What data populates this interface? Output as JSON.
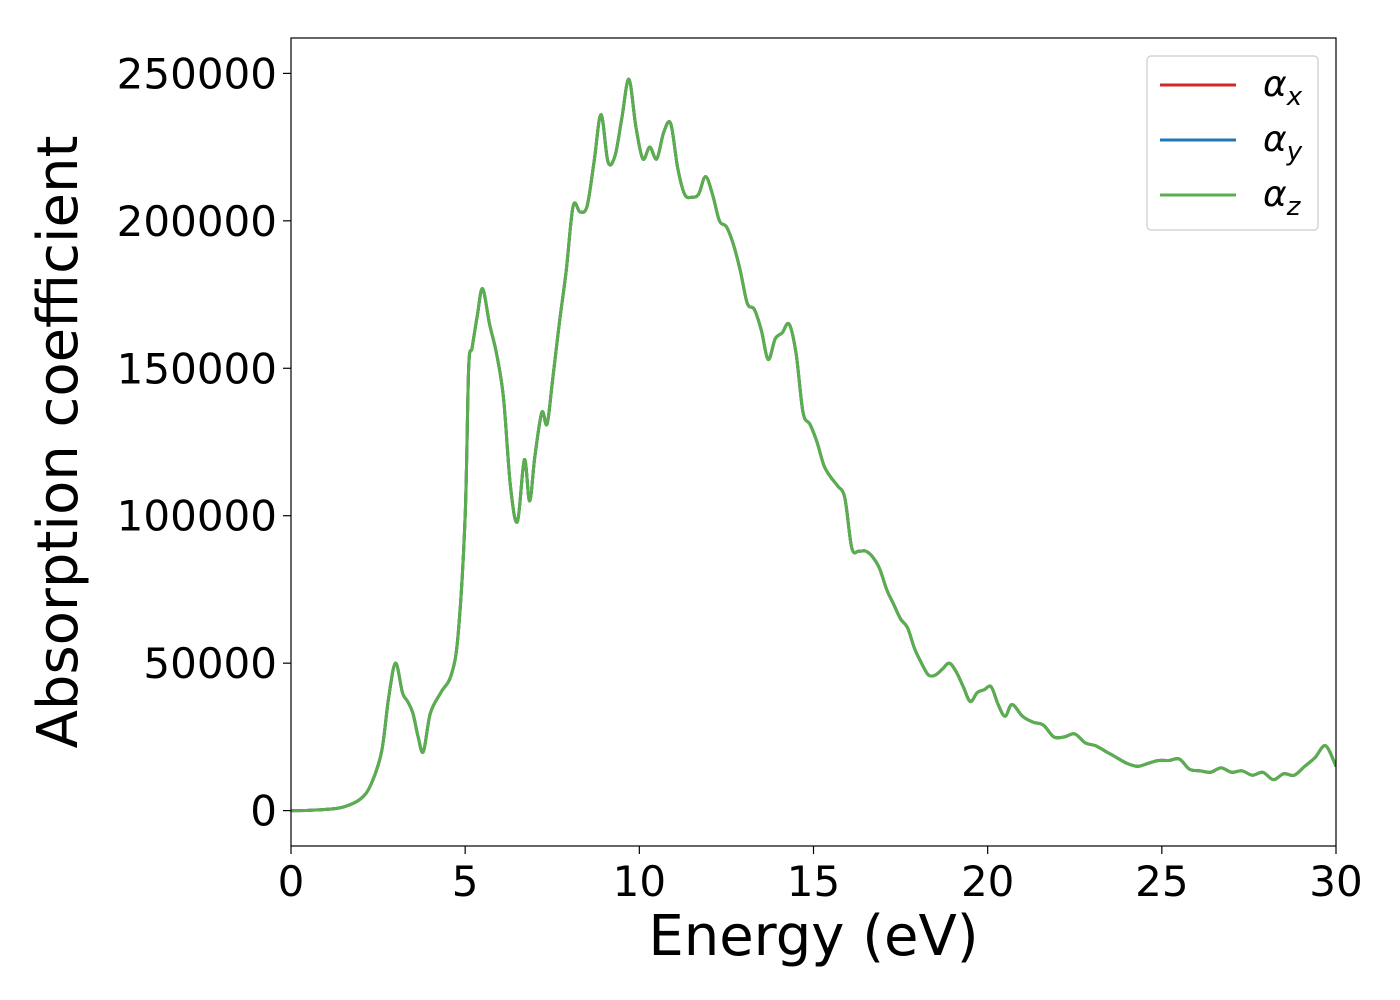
{
  "chart_data": {
    "type": "line",
    "title": "",
    "xlabel": "Energy (eV)",
    "ylabel": "Absorption coefficient",
    "xlim": [
      0,
      30
    ],
    "ylim": [
      -12000,
      262000
    ],
    "xticks": [
      "0",
      "5",
      "10",
      "15",
      "20",
      "25",
      "30"
    ],
    "yticks": [
      "0",
      "50000",
      "100000",
      "150000",
      "200000",
      "250000"
    ],
    "grid": false,
    "legend_position": "top-right",
    "series": [
      {
        "name": "α",
        "subscript": "x",
        "color": "#d62728",
        "x": [
          0,
          0.5,
          1,
          1.5,
          2,
          2.3,
          2.6,
          2.8,
          3.0,
          3.2,
          3.35,
          3.5,
          3.65,
          3.8,
          4.0,
          4.3,
          4.6,
          4.8,
          5.0,
          5.1,
          5.2,
          5.35,
          5.5,
          5.7,
          5.9,
          6.1,
          6.3,
          6.5,
          6.7,
          6.85,
          7.0,
          7.2,
          7.35,
          7.5,
          7.7,
          7.9,
          8.1,
          8.3,
          8.5,
          8.7,
          8.9,
          9.1,
          9.3,
          9.5,
          9.7,
          9.9,
          10.1,
          10.3,
          10.5,
          10.7,
          10.9,
          11.1,
          11.3,
          11.5,
          11.7,
          11.9,
          12.1,
          12.3,
          12.5,
          12.7,
          12.9,
          13.1,
          13.3,
          13.5,
          13.7,
          13.9,
          14.1,
          14.3,
          14.5,
          14.7,
          14.9,
          15.1,
          15.3,
          15.5,
          15.7,
          15.9,
          16.1,
          16.3,
          16.5,
          16.7,
          16.9,
          17.1,
          17.3,
          17.5,
          17.7,
          17.9,
          18.1,
          18.3,
          18.5,
          18.7,
          18.9,
          19.1,
          19.3,
          19.5,
          19.7,
          19.9,
          20.1,
          20.3,
          20.5,
          20.7,
          21.0,
          21.3,
          21.6,
          21.9,
          22.2,
          22.5,
          22.8,
          23.1,
          23.4,
          23.7,
          24.0,
          24.3,
          24.6,
          24.9,
          25.2,
          25.5,
          25.8,
          26.1,
          26.4,
          26.7,
          27.0,
          27.3,
          27.6,
          27.9,
          28.2,
          28.5,
          28.8,
          29.1,
          29.4,
          29.7,
          30.0
        ],
        "y": [
          0,
          100,
          400,
          1200,
          4000,
          9000,
          20000,
          38000,
          50000,
          40000,
          37000,
          33000,
          25000,
          20000,
          33000,
          40000,
          46000,
          60000,
          100000,
          150000,
          157000,
          168000,
          177000,
          165000,
          155000,
          140000,
          110000,
          98000,
          119000,
          105000,
          120000,
          135000,
          131000,
          145000,
          165000,
          183000,
          205000,
          203000,
          205000,
          220000,
          236000,
          220000,
          222000,
          235000,
          248000,
          232000,
          221000,
          225000,
          221000,
          230000,
          233000,
          218000,
          209000,
          208000,
          209000,
          215000,
          209000,
          200000,
          198000,
          192000,
          183000,
          172000,
          170000,
          163000,
          153000,
          160000,
          162000,
          165000,
          155000,
          135000,
          131000,
          125000,
          117000,
          113000,
          110000,
          106000,
          89000,
          88000,
          88000,
          86000,
          82000,
          75000,
          70000,
          65000,
          62000,
          55000,
          50000,
          46000,
          46000,
          48000,
          50000,
          47000,
          42000,
          37000,
          40000,
          41000,
          42000,
          36000,
          32000,
          36000,
          32000,
          30000,
          29000,
          25000,
          25000,
          26000,
          23000,
          22000,
          20000,
          18000,
          16000,
          15000,
          16000,
          17000,
          17000,
          17500,
          14000,
          13500,
          13000,
          14500,
          13000,
          13500,
          12000,
          13000,
          10500,
          12500,
          12000,
          15000,
          18000,
          22000,
          15000
        ]
      },
      {
        "name": "α",
        "subscript": "y",
        "color": "#1f77b4",
        "x": [
          0,
          0.5,
          1,
          1.5,
          2,
          2.3,
          2.6,
          2.8,
          3.0,
          3.2,
          3.35,
          3.5,
          3.65,
          3.8,
          4.0,
          4.3,
          4.6,
          4.8,
          5.0,
          5.1,
          5.2,
          5.35,
          5.5,
          5.7,
          5.9,
          6.1,
          6.3,
          6.5,
          6.7,
          6.85,
          7.0,
          7.2,
          7.35,
          7.5,
          7.7,
          7.9,
          8.1,
          8.3,
          8.5,
          8.7,
          8.9,
          9.1,
          9.3,
          9.5,
          9.7,
          9.9,
          10.1,
          10.3,
          10.5,
          10.7,
          10.9,
          11.1,
          11.3,
          11.5,
          11.7,
          11.9,
          12.1,
          12.3,
          12.5,
          12.7,
          12.9,
          13.1,
          13.3,
          13.5,
          13.7,
          13.9,
          14.1,
          14.3,
          14.5,
          14.7,
          14.9,
          15.1,
          15.3,
          15.5,
          15.7,
          15.9,
          16.1,
          16.3,
          16.5,
          16.7,
          16.9,
          17.1,
          17.3,
          17.5,
          17.7,
          17.9,
          18.1,
          18.3,
          18.5,
          18.7,
          18.9,
          19.1,
          19.3,
          19.5,
          19.7,
          19.9,
          20.1,
          20.3,
          20.5,
          20.7,
          21.0,
          21.3,
          21.6,
          21.9,
          22.2,
          22.5,
          22.8,
          23.1,
          23.4,
          23.7,
          24.0,
          24.3,
          24.6,
          24.9,
          25.2,
          25.5,
          25.8,
          26.1,
          26.4,
          26.7,
          27.0,
          27.3,
          27.6,
          27.9,
          28.2,
          28.5,
          28.8,
          29.1,
          29.4,
          29.7,
          30.0
        ],
        "y": [
          0,
          100,
          400,
          1200,
          4000,
          9000,
          20000,
          38000,
          50000,
          40000,
          37000,
          33000,
          25000,
          20000,
          33000,
          40000,
          46000,
          60000,
          100000,
          150000,
          157000,
          168000,
          177000,
          165000,
          155000,
          140000,
          110000,
          98000,
          119000,
          105000,
          120000,
          135000,
          131000,
          145000,
          165000,
          183000,
          205000,
          203000,
          205000,
          220000,
          236000,
          220000,
          222000,
          235000,
          248000,
          232000,
          221000,
          225000,
          221000,
          230000,
          233000,
          218000,
          209000,
          208000,
          209000,
          215000,
          209000,
          200000,
          198000,
          192000,
          183000,
          172000,
          170000,
          163000,
          153000,
          160000,
          162000,
          165000,
          155000,
          135000,
          131000,
          125000,
          117000,
          113000,
          110000,
          106000,
          89000,
          88000,
          88000,
          86000,
          82000,
          75000,
          70000,
          65000,
          62000,
          55000,
          50000,
          46000,
          46000,
          48000,
          50000,
          47000,
          42000,
          37000,
          40000,
          41000,
          42000,
          36000,
          32000,
          36000,
          32000,
          30000,
          29000,
          25000,
          25000,
          26000,
          23000,
          22000,
          20000,
          18000,
          16000,
          15000,
          16000,
          17000,
          17000,
          17500,
          14000,
          13500,
          13000,
          14500,
          13000,
          13500,
          12000,
          13000,
          10500,
          12500,
          12000,
          15000,
          18000,
          22000,
          15000
        ]
      },
      {
        "name": "α",
        "subscript": "z",
        "color": "#5aaf4d",
        "x": [
          0,
          0.5,
          1,
          1.5,
          2,
          2.3,
          2.6,
          2.8,
          3.0,
          3.2,
          3.35,
          3.5,
          3.65,
          3.8,
          4.0,
          4.3,
          4.6,
          4.8,
          5.0,
          5.1,
          5.2,
          5.35,
          5.5,
          5.7,
          5.9,
          6.1,
          6.3,
          6.5,
          6.7,
          6.85,
          7.0,
          7.2,
          7.35,
          7.5,
          7.7,
          7.9,
          8.1,
          8.3,
          8.5,
          8.7,
          8.9,
          9.1,
          9.3,
          9.5,
          9.7,
          9.9,
          10.1,
          10.3,
          10.5,
          10.7,
          10.9,
          11.1,
          11.3,
          11.5,
          11.7,
          11.9,
          12.1,
          12.3,
          12.5,
          12.7,
          12.9,
          13.1,
          13.3,
          13.5,
          13.7,
          13.9,
          14.1,
          14.3,
          14.5,
          14.7,
          14.9,
          15.1,
          15.3,
          15.5,
          15.7,
          15.9,
          16.1,
          16.3,
          16.5,
          16.7,
          16.9,
          17.1,
          17.3,
          17.5,
          17.7,
          17.9,
          18.1,
          18.3,
          18.5,
          18.7,
          18.9,
          19.1,
          19.3,
          19.5,
          19.7,
          19.9,
          20.1,
          20.3,
          20.5,
          20.7,
          21.0,
          21.3,
          21.6,
          21.9,
          22.2,
          22.5,
          22.8,
          23.1,
          23.4,
          23.7,
          24.0,
          24.3,
          24.6,
          24.9,
          25.2,
          25.5,
          25.8,
          26.1,
          26.4,
          26.7,
          27.0,
          27.3,
          27.6,
          27.9,
          28.2,
          28.5,
          28.8,
          29.1,
          29.4,
          29.7,
          30.0
        ],
        "y": [
          0,
          100,
          400,
          1200,
          4000,
          9000,
          20000,
          38000,
          50000,
          40000,
          37000,
          33000,
          25000,
          20000,
          33000,
          40000,
          46000,
          60000,
          100000,
          150000,
          157000,
          168000,
          177000,
          165000,
          155000,
          140000,
          110000,
          98000,
          119000,
          105000,
          120000,
          135000,
          131000,
          145000,
          165000,
          183000,
          205000,
          203000,
          205000,
          220000,
          236000,
          220000,
          222000,
          235000,
          248000,
          232000,
          221000,
          225000,
          221000,
          230000,
          233000,
          218000,
          209000,
          208000,
          209000,
          215000,
          209000,
          200000,
          198000,
          192000,
          183000,
          172000,
          170000,
          163000,
          153000,
          160000,
          162000,
          165000,
          155000,
          135000,
          131000,
          125000,
          117000,
          113000,
          110000,
          106000,
          89000,
          88000,
          88000,
          86000,
          82000,
          75000,
          70000,
          65000,
          62000,
          55000,
          50000,
          46000,
          46000,
          48000,
          50000,
          47000,
          42000,
          37000,
          40000,
          41000,
          42000,
          36000,
          32000,
          36000,
          32000,
          30000,
          29000,
          25000,
          25000,
          26000,
          23000,
          22000,
          20000,
          18000,
          16000,
          15000,
          16000,
          17000,
          17000,
          17500,
          14000,
          13500,
          13000,
          14500,
          13000,
          13500,
          12000,
          13000,
          10500,
          12500,
          12000,
          15000,
          18000,
          22000,
          15000
        ]
      }
    ]
  }
}
